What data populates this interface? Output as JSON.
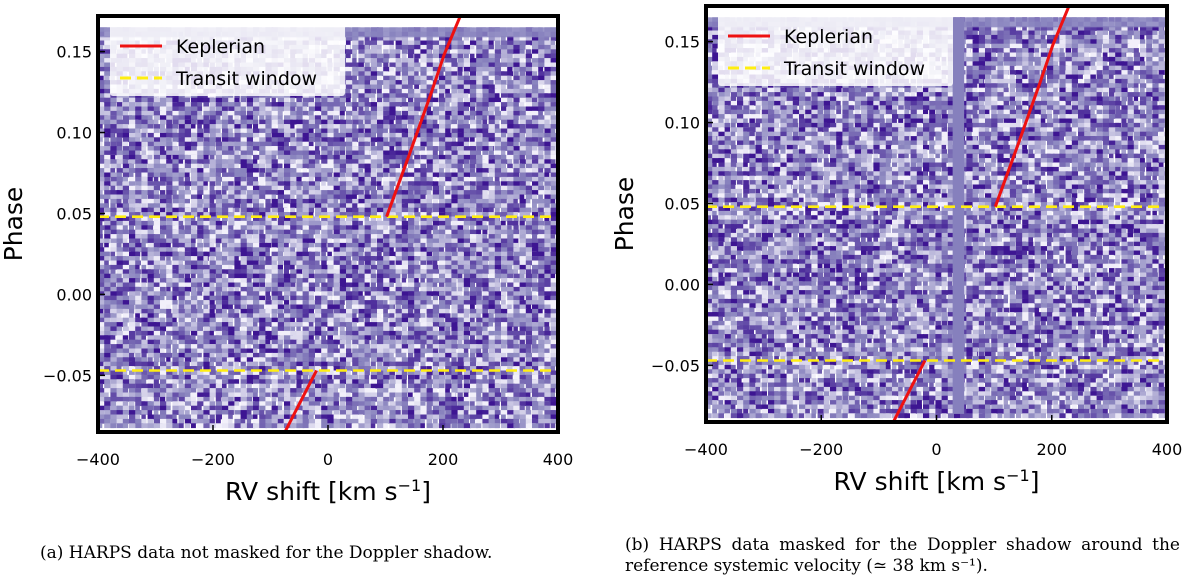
{
  "chart_data": [
    {
      "type": "heatmap",
      "id": "a",
      "xlabel": "RV shift [km s^-1]",
      "ylabel": "Phase",
      "xlim": [
        -400,
        400
      ],
      "ylim": [
        -0.085,
        0.172
      ],
      "xticks": [
        {
          "value": -400,
          "label": "−400"
        },
        {
          "value": -200,
          "label": "−200"
        },
        {
          "value": 0,
          "label": "0"
        },
        {
          "value": 200,
          "label": "200"
        },
        {
          "value": 400,
          "label": "400"
        }
      ],
      "yticks": [
        {
          "value": -0.05,
          "label": "−0.05"
        },
        {
          "value": 0.0,
          "label": "0.00"
        },
        {
          "value": 0.05,
          "label": "0.05"
        },
        {
          "value": 0.1,
          "label": "0.10"
        },
        {
          "value": 0.15,
          "label": "0.15"
        }
      ],
      "data_phase_range": [
        -0.08,
        0.165
      ],
      "masked_region": null,
      "legend": [
        {
          "label": "Keplerian",
          "color": "#ee1111",
          "style": "solid"
        },
        {
          "label": "Transit window",
          "color": "#ffee11",
          "style": "dashed"
        }
      ],
      "transit_window": [
        -0.047,
        0.048
      ],
      "series": [
        {
          "name": "Keplerian (pre-transit)",
          "x": [
            -75,
            -20
          ],
          "y": [
            -0.085,
            -0.047
          ]
        },
        {
          "name": "Keplerian (post-transit)",
          "x": [
            102,
            140,
            180,
            202,
            230
          ],
          "y": [
            0.048,
            0.085,
            0.125,
            0.148,
            0.172
          ]
        }
      ],
      "caption": "(a) HARPS data not masked for the Doppler shadow."
    },
    {
      "type": "heatmap",
      "id": "b",
      "xlabel": "RV shift [km s^-1]",
      "ylabel": "Phase",
      "xlim": [
        -400,
        400
      ],
      "ylim": [
        -0.085,
        0.172
      ],
      "xticks": [
        {
          "value": -400,
          "label": "−400"
        },
        {
          "value": -200,
          "label": "−200"
        },
        {
          "value": 0,
          "label": "0"
        },
        {
          "value": 200,
          "label": "200"
        },
        {
          "value": 400,
          "label": "400"
        }
      ],
      "yticks": [
        {
          "value": -0.05,
          "label": "−0.05"
        },
        {
          "value": 0.0,
          "label": "0.00"
        },
        {
          "value": 0.05,
          "label": "0.05"
        },
        {
          "value": 0.1,
          "label": "0.10"
        },
        {
          "value": 0.15,
          "label": "0.15"
        }
      ],
      "data_phase_range": [
        -0.08,
        0.165
      ],
      "masked_region": [
        28,
        48
      ],
      "legend": [
        {
          "label": "Keplerian",
          "color": "#ee1111",
          "style": "solid"
        },
        {
          "label": "Transit window",
          "color": "#ffee11",
          "style": "dashed"
        }
      ],
      "transit_window": [
        -0.047,
        0.048
      ],
      "series": [
        {
          "name": "Keplerian (pre-transit)",
          "x": [
            -75,
            -20
          ],
          "y": [
            -0.085,
            -0.047
          ]
        },
        {
          "name": "Keplerian (post-transit)",
          "x": [
            102,
            140,
            180,
            202,
            230
          ],
          "y": [
            0.048,
            0.085,
            0.125,
            0.148,
            0.172
          ]
        }
      ],
      "caption": "(b) HARPS data masked for the Doppler shadow around the reference systemic velocity (≃ 38 km s⁻¹)."
    }
  ],
  "colors": {
    "heatmap_base": "#8b86bf",
    "heatmap_dark": "#3d1592",
    "heatmap_light": "#f2f0fa",
    "mask": "#8680bd"
  }
}
